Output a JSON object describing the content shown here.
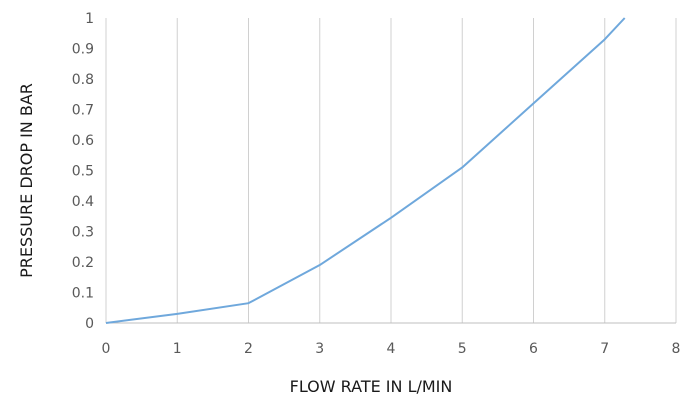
{
  "chart_data": {
    "type": "line",
    "title": "",
    "xlabel": "FLOW RATE IN L/MIN",
    "ylabel": "PRESSURE DROP IN BAR",
    "xlim": [
      0,
      8
    ],
    "ylim": [
      0,
      1
    ],
    "x_ticks": [
      "0",
      "1",
      "2",
      "3",
      "4",
      "5",
      "6",
      "7",
      "8"
    ],
    "y_ticks": [
      "0",
      "0.1",
      "0.2",
      "0.3",
      "0.4",
      "0.5",
      "0.6",
      "0.7",
      "0.8",
      "0.9",
      "1"
    ],
    "grid": "vertical",
    "legend": "none",
    "series": [
      {
        "color": "#6fa8dc",
        "x": [
          0,
          1,
          2,
          3,
          4,
          5,
          6,
          7,
          7.28
        ],
        "y": [
          0,
          0.03,
          0.065,
          0.19,
          0.345,
          0.51,
          0.72,
          0.93,
          1.0
        ]
      }
    ]
  }
}
